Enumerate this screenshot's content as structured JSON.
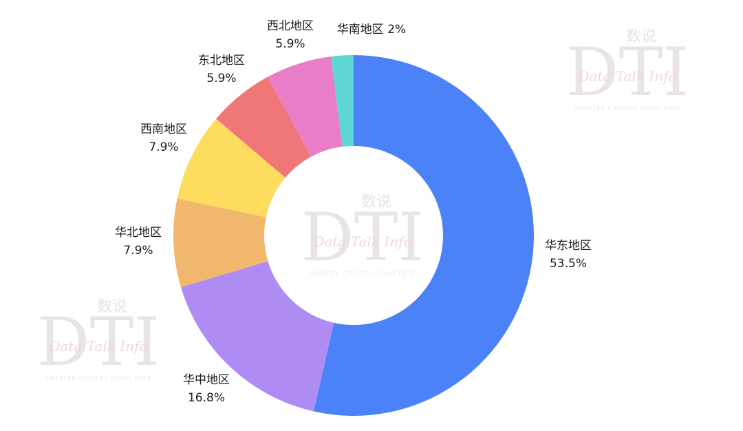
{
  "chart_data": {
    "type": "pie",
    "variant": "donut",
    "start_angle_deg": 0,
    "direction": "clockwise",
    "slices": [
      {
        "label": "华东地区",
        "value": 53.5,
        "display": "53.5%",
        "color": "#4c82f7"
      },
      {
        "label": "华中地区",
        "value": 16.8,
        "display": "16.8%",
        "color": "#ae8cf4"
      },
      {
        "label": "华北地区",
        "value": 7.9,
        "display": "7.9%",
        "color": "#f1b86d"
      },
      {
        "label": "西南地区",
        "value": 7.9,
        "display": "7.9%",
        "color": "#fedc5d"
      },
      {
        "label": "东北地区",
        "value": 5.9,
        "display": "5.9%",
        "color": "#f07778"
      },
      {
        "label": "西北地区",
        "value": 5.9,
        "display": "5.9%",
        "color": "#e97dc8"
      },
      {
        "label": "华南地区",
        "value": 2,
        "display": "2%",
        "color": "#5dd6d4"
      }
    ]
  },
  "watermark": {
    "logo_text": "DTI",
    "chinese_text": "数说",
    "script_text": "Data Talk Info",
    "tagline": "SMARTER CHOICES USING DATA"
  }
}
